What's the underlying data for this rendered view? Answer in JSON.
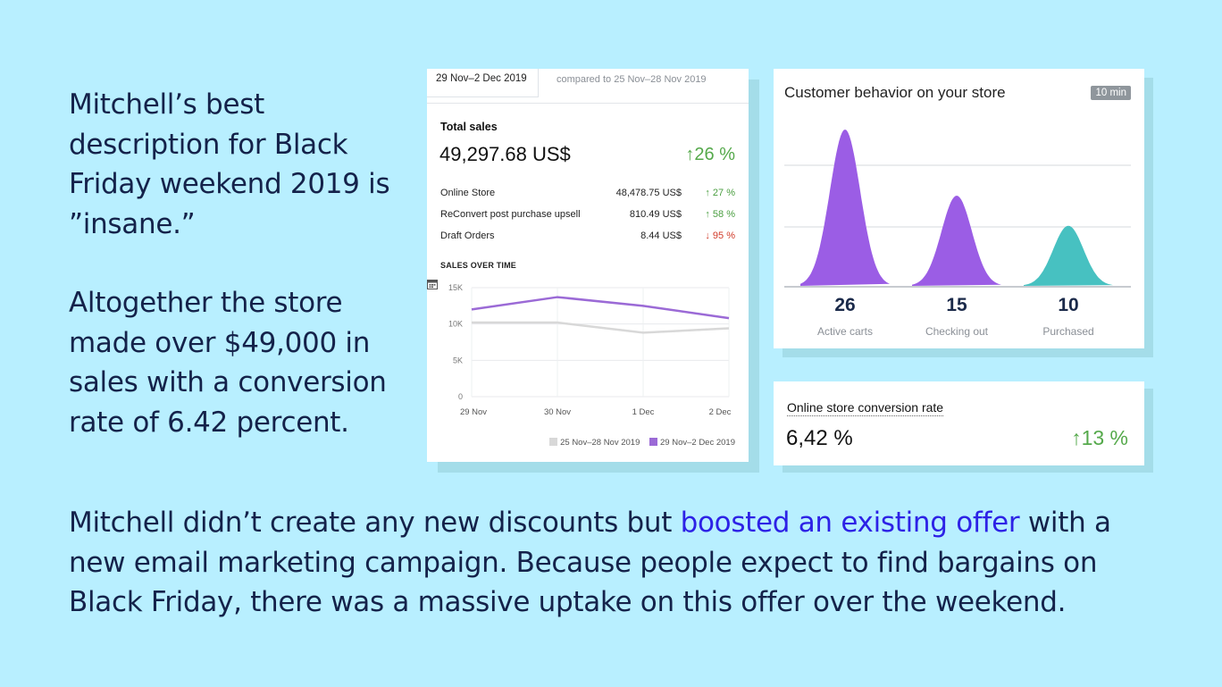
{
  "intro_text": "Mitchell’s best description for Black Friday weekend 2019 is ”insane.”",
  "stats_text": "Altogether the store made over $49,000 in sales with a conversion rate of 6.42 percent.",
  "bottom": {
    "before": "Mitchell didn’t create any new discounts but ",
    "link": "boosted an existing offer",
    "after": " with a new email marketing campaign. Because people expect to find bargains on Black Friday, there was a massive uptake on this offer over the weekend."
  },
  "colors": {
    "background": "#b8efff",
    "link": "#2d22e6",
    "positive": "#55a94b",
    "negative": "#d13b2a",
    "purple": "#9b5de5",
    "teal": "#47c1c1"
  },
  "sales_card": {
    "date_range": "29 Nov–2 Dec 2019",
    "compared": "compared to 25 Nov–28 Nov 2019",
    "total_label": "Total sales",
    "total_value": "49,297.68 US$",
    "total_change": "↑26 %",
    "rows": [
      {
        "name": "Online Store",
        "value": "48,478.75 US$",
        "change": "↑ 27 %"
      },
      {
        "name": "ReConvert post purchase upsell",
        "value": "810.49 US$",
        "change": "↑ 58 %"
      },
      {
        "name": "Draft Orders",
        "value": "8.44 US$",
        "change": "↓ 95 %"
      }
    ],
    "chart_label": "SALES OVER TIME",
    "legend": [
      "25 Nov–28 Nov 2019",
      "29 Nov–2 Dec 2019"
    ]
  },
  "behavior_card": {
    "title": "Customer behavior on your store",
    "badge": "10 min",
    "metrics": [
      {
        "value": "26",
        "label": "Active carts"
      },
      {
        "value": "15",
        "label": "Checking out"
      },
      {
        "value": "10",
        "label": "Purchased"
      }
    ]
  },
  "conversion_card": {
    "title": "Online store conversion rate",
    "value": "6,42 %",
    "change": "↑13 %"
  },
  "chart_data": [
    {
      "type": "line",
      "title": "SALES OVER TIME",
      "categories": [
        "29 Nov",
        "30 Nov",
        "1 Dec",
        "2 Dec"
      ],
      "y_ticks": [
        "0",
        "5K",
        "10K",
        "15K"
      ],
      "ylim": [
        0,
        15000
      ],
      "series": [
        {
          "name": "25 Nov–28 Nov 2019",
          "color": "#d8d8d8",
          "values": [
            10200,
            10200,
            8800,
            9400
          ]
        },
        {
          "name": "29 Nov–2 Dec 2019",
          "color": "#9b6ad6",
          "values": [
            12000,
            13700,
            12500,
            10800
          ]
        }
      ],
      "grid": true,
      "legend": "bottom-right"
    },
    {
      "type": "area",
      "categories": [
        "Active carts",
        "Checking out",
        "Purchased"
      ],
      "values": [
        26,
        15,
        10
      ],
      "colors": [
        "#9b5de5",
        "#9b5de5",
        "#47c1c1"
      ]
    }
  ]
}
